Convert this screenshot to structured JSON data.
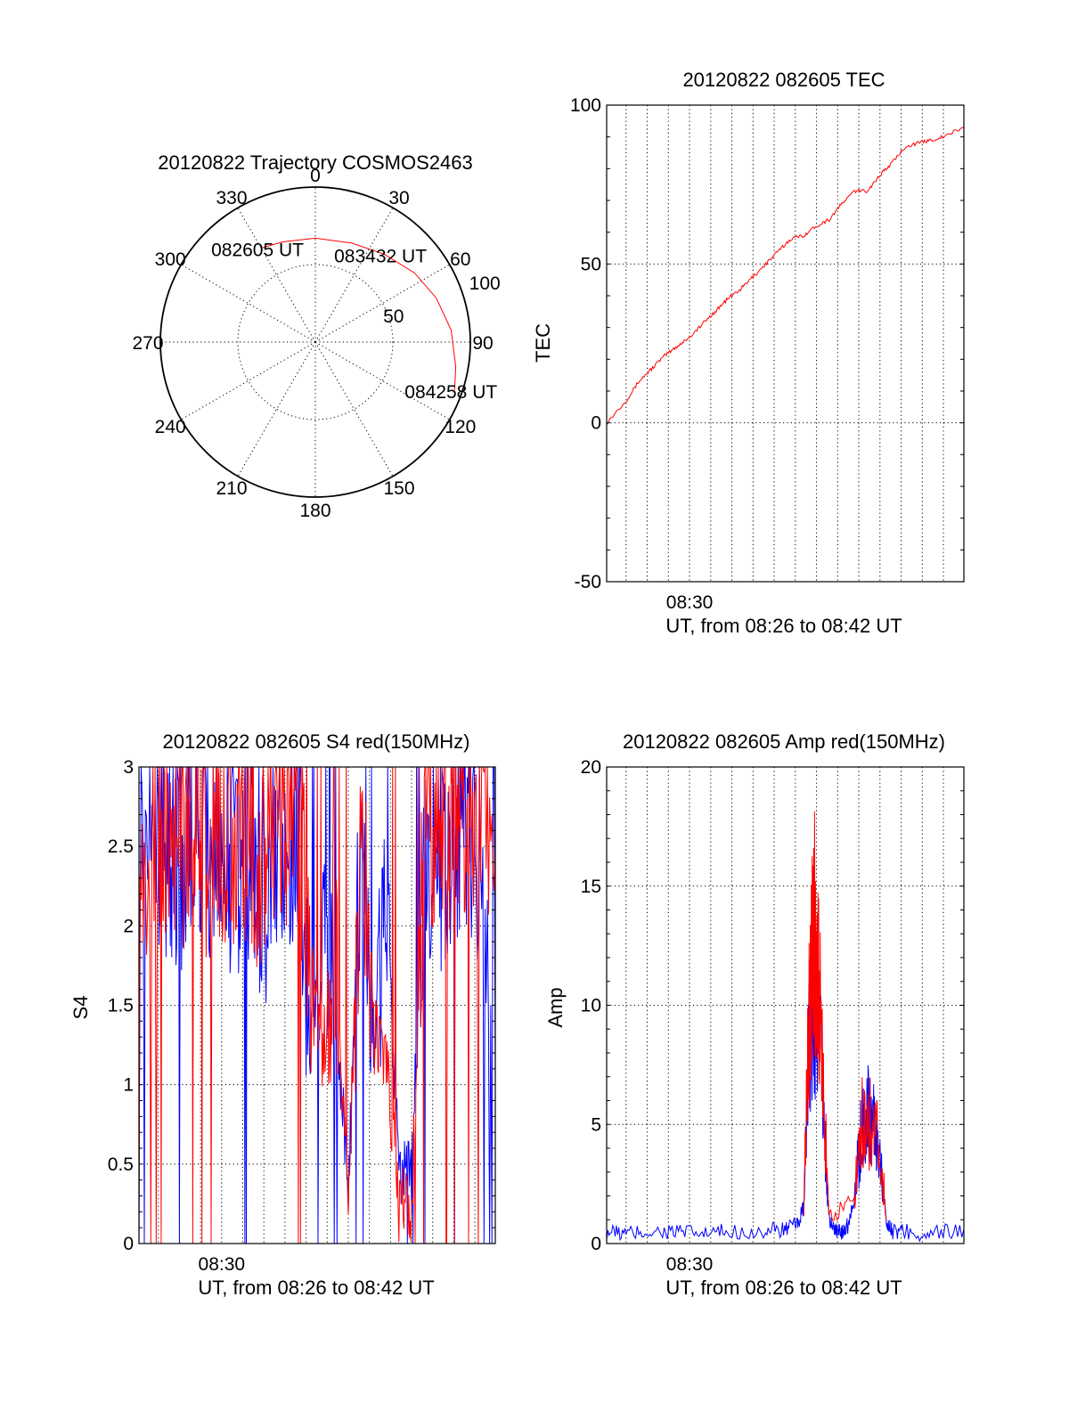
{
  "chart_data": [
    {
      "type": "polar",
      "title": "20120822 Trajectory COSMOS2463",
      "angle_labels": [
        "0",
        "30",
        "60",
        "90",
        "120",
        "150",
        "180",
        "210",
        "240",
        "270",
        "300",
        "330"
      ],
      "radial_labels": [
        "50",
        "100"
      ],
      "trajectory": {
        "color": "#ff0000",
        "points": [
          {
            "az": 330,
            "zen": 70
          },
          {
            "az": 342,
            "zen": 68
          },
          {
            "az": 0,
            "zen": 67
          },
          {
            "az": 20,
            "zen": 68
          },
          {
            "az": 38,
            "zen": 72
          },
          {
            "az": 55,
            "zen": 78
          },
          {
            "az": 70,
            "zen": 83
          },
          {
            "az": 85,
            "zen": 88
          },
          {
            "az": 100,
            "zen": 92
          },
          {
            "az": 109,
            "zen": 95
          }
        ],
        "annotations": [
          {
            "text": "082605 UT",
            "az": 330,
            "zen": 70
          },
          {
            "text": "083432 UT",
            "az": 38,
            "zen": 72
          },
          {
            "text": "084258 UT",
            "az": 109,
            "zen": 95
          }
        ]
      }
    },
    {
      "type": "line",
      "title": "20120822 082605 TEC",
      "xlabel": "UT, from 08:26 to 08:42 UT",
      "ylabel": "TEC",
      "xlim": [
        8.4347,
        8.7161
      ],
      "ylim": [
        -50,
        100
      ],
      "yticks": [
        "-50",
        "0",
        "50",
        "100"
      ],
      "xticks": [
        {
          "x": 8.5,
          "label": "08:30"
        }
      ],
      "series": [
        {
          "color": "#ff0000",
          "x": [
            8.4347,
            8.45,
            8.46,
            8.47,
            8.48,
            8.49,
            8.5,
            8.51,
            8.52,
            8.53,
            8.54,
            8.55,
            8.56,
            8.57,
            8.58,
            8.59,
            8.6,
            8.61,
            8.62,
            8.63,
            8.64,
            8.65,
            8.66,
            8.67,
            8.68,
            8.69,
            8.7,
            8.7161
          ],
          "y": [
            0,
            7,
            13,
            17,
            21,
            24,
            27,
            31,
            35,
            39,
            42,
            46,
            50,
            54,
            58,
            59,
            62,
            64,
            69,
            73,
            73,
            78,
            82,
            87,
            88,
            89,
            90,
            93
          ]
        }
      ]
    },
    {
      "type": "line",
      "title": "20120822 082605 S4 red(150MHz)",
      "xlabel": "UT, from 08:26 to 08:42 UT",
      "ylabel": "S4",
      "xlim": [
        8.4347,
        8.7161
      ],
      "ylim": [
        0,
        3
      ],
      "yticks": [
        "0",
        "0.5",
        "1",
        "1.5",
        "2",
        "2.5",
        "3"
      ],
      "xticks": [
        {
          "x": 8.5,
          "label": "08:30"
        }
      ],
      "series": [
        {
          "color": "#0000ff",
          "x": [
            8.4347,
            8.45,
            8.46,
            8.47,
            8.48,
            8.49,
            8.5,
            8.51,
            8.52,
            8.53,
            8.54,
            8.55,
            8.56,
            8.57,
            8.58,
            8.59,
            8.6,
            8.61,
            8.62,
            8.63,
            8.64,
            8.65,
            8.66,
            8.67,
            8.68,
            8.69,
            8.7,
            8.7161
          ],
          "y": [
            2.6,
            2.4,
            2.5,
            2.3,
            2.4,
            2.5,
            2.2,
            2.3,
            2.4,
            2.0,
            2.3,
            2.4,
            2.6,
            1.2,
            1.8,
            1.5,
            0.3,
            2.5,
            1.3,
            2.0,
            0.5,
            0.4,
            2.4,
            2.3,
            2.5,
            2.6,
            2.5,
            1.0
          ]
        },
        {
          "color": "#ff0000",
          "x": [
            8.4347,
            8.45,
            8.46,
            8.47,
            8.48,
            8.49,
            8.5,
            8.51,
            8.52,
            8.53,
            8.54,
            8.55,
            8.56,
            8.57,
            8.58,
            8.59,
            8.6,
            8.61,
            8.62,
            8.63,
            8.64,
            8.65,
            8.66,
            8.67,
            8.68,
            8.69,
            8.7,
            8.7161
          ],
          "y": [
            2.4,
            2.7,
            2.6,
            2.5,
            2.8,
            2.4,
            2.6,
            2.5,
            2.6,
            2.3,
            2.7,
            2.6,
            2.8,
            1.6,
            1.2,
            1.9,
            0.2,
            2.6,
            1.3,
            1.2,
            0.25,
            0.2,
            2.6,
            2.7,
            2.6,
            2.8,
            2.7,
            2.5
          ]
        }
      ]
    },
    {
      "type": "line",
      "title": "20120822 082605 Amp red(150MHz)",
      "xlabel": "UT, from 08:26 to 08:42 UT",
      "ylabel": "Amp",
      "xlim": [
        8.4347,
        8.7161
      ],
      "ylim": [
        0,
        20
      ],
      "yticks": [
        "0",
        "5",
        "10",
        "15",
        "20"
      ],
      "xticks": [
        {
          "x": 8.5,
          "label": "08:30"
        }
      ],
      "series": [
        {
          "color": "#0000ff",
          "x": [
            8.4347,
            8.45,
            8.47,
            8.49,
            8.51,
            8.53,
            8.56,
            8.575,
            8.585,
            8.59,
            8.594,
            8.598,
            8.602,
            8.606,
            8.61,
            8.615,
            8.62,
            8.625,
            8.63,
            8.635,
            8.64,
            8.645,
            8.65,
            8.655,
            8.66,
            8.67,
            8.69,
            8.7161
          ],
          "y": [
            0.5,
            0.4,
            0.5,
            0.5,
            0.4,
            0.5,
            0.5,
            0.6,
            0.8,
            1.5,
            8.0,
            10.0,
            9.0,
            5.0,
            1.0,
            0.5,
            0.5,
            0.8,
            2.0,
            4.5,
            5.5,
            5.0,
            3.5,
            1.0,
            0.5,
            0.5,
            0.4,
            0.6
          ]
        },
        {
          "color": "#ff0000",
          "x": [
            8.59,
            8.594,
            8.596,
            8.598,
            8.6,
            8.602,
            8.606,
            8.61,
            8.63,
            8.635,
            8.64,
            8.645,
            8.65,
            8.655
          ],
          "y": [
            1.5,
            9.0,
            11.0,
            13.5,
            12.0,
            10.5,
            6.0,
            1.0,
            2.0,
            5.0,
            5.2,
            4.8,
            4.0,
            1.0
          ]
        }
      ]
    }
  ]
}
